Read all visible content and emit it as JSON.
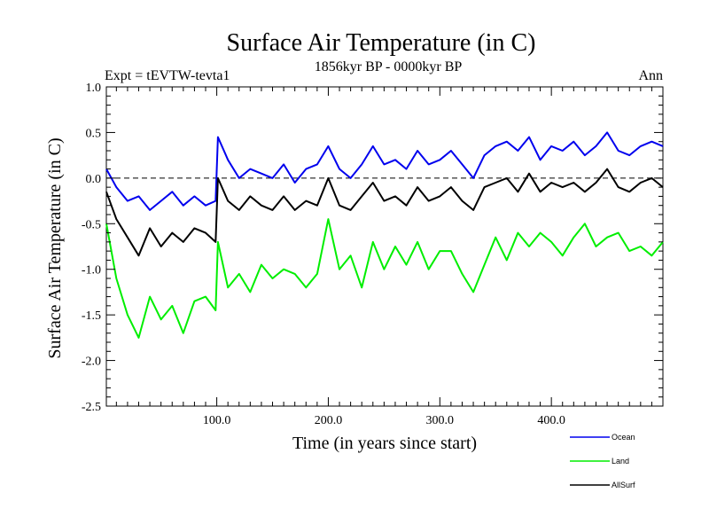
{
  "header": {
    "title": "Surface Air Temperature (in C)",
    "experiment": "Expt = tEVTW-tevta1",
    "period": "1856kyr BP - 0000kyr BP",
    "season": "Ann"
  },
  "chart_data": {
    "type": "line",
    "title": "Surface Air Temperature (in C)",
    "xlabel": "Time (in years since start)",
    "ylabel": "Surface Air Temperature (in C)",
    "xlim": [
      1,
      500
    ],
    "ylim": [
      -2.5,
      1.0
    ],
    "x_ticks": [
      100,
      200,
      300,
      400
    ],
    "x_tick_labels": [
      "100.0",
      "200.0",
      "300.0",
      "400.0"
    ],
    "y_ticks": [
      1.0,
      0.5,
      0.0,
      -0.5,
      -1.0,
      -1.5,
      -2.0,
      -2.5
    ],
    "y_tick_labels": [
      "1.0",
      "0.5",
      "0.0",
      "-0.5",
      "-1.0",
      "-1.5",
      "-2.0",
      "-2.5"
    ],
    "reference_line": 0.0,
    "legend_position": "bottom-right",
    "x": [
      1,
      10,
      20,
      30,
      40,
      50,
      60,
      70,
      80,
      90,
      99,
      101,
      110,
      120,
      130,
      140,
      150,
      160,
      170,
      180,
      190,
      200,
      210,
      220,
      230,
      240,
      250,
      260,
      270,
      280,
      290,
      300,
      310,
      320,
      330,
      340,
      350,
      360,
      370,
      380,
      390,
      400,
      410,
      420,
      430,
      440,
      450,
      460,
      470,
      480,
      490,
      500
    ],
    "series": [
      {
        "name": "Ocean",
        "color": "#0000ee",
        "values": [
          0.1,
          -0.1,
          -0.25,
          -0.2,
          -0.35,
          -0.25,
          -0.15,
          -0.3,
          -0.2,
          -0.3,
          -0.25,
          0.45,
          0.2,
          0.0,
          0.1,
          0.05,
          0.0,
          0.15,
          -0.05,
          0.1,
          0.15,
          0.35,
          0.1,
          0.0,
          0.15,
          0.35,
          0.15,
          0.2,
          0.1,
          0.3,
          0.15,
          0.2,
          0.3,
          0.15,
          0.0,
          0.25,
          0.35,
          0.4,
          0.3,
          0.45,
          0.2,
          0.35,
          0.3,
          0.4,
          0.25,
          0.35,
          0.5,
          0.3,
          0.25,
          0.35,
          0.4,
          0.35
        ]
      },
      {
        "name": "Land",
        "color": "#00ee00",
        "values": [
          -0.5,
          -1.1,
          -1.5,
          -1.75,
          -1.3,
          -1.55,
          -1.4,
          -1.7,
          -1.35,
          -1.3,
          -1.45,
          -0.7,
          -1.2,
          -1.05,
          -1.25,
          -0.95,
          -1.1,
          -1.0,
          -1.05,
          -1.2,
          -1.05,
          -0.45,
          -1.0,
          -0.85,
          -1.2,
          -0.7,
          -1.0,
          -0.75,
          -0.95,
          -0.7,
          -1.0,
          -0.8,
          -0.8,
          -1.05,
          -1.25,
          -0.95,
          -0.65,
          -0.9,
          -0.6,
          -0.75,
          -0.6,
          -0.7,
          -0.85,
          -0.65,
          -0.5,
          -0.75,
          -0.65,
          -0.6,
          -0.8,
          -0.75,
          -0.85,
          -0.7
        ]
      },
      {
        "name": "AllSurf",
        "color": "#000000",
        "values": [
          -0.15,
          -0.45,
          -0.65,
          -0.85,
          -0.55,
          -0.75,
          -0.6,
          -0.7,
          -0.55,
          -0.6,
          -0.7,
          0.0,
          -0.25,
          -0.35,
          -0.2,
          -0.3,
          -0.35,
          -0.2,
          -0.35,
          -0.25,
          -0.3,
          0.0,
          -0.3,
          -0.35,
          -0.2,
          -0.05,
          -0.25,
          -0.2,
          -0.3,
          -0.1,
          -0.25,
          -0.2,
          -0.1,
          -0.25,
          -0.35,
          -0.1,
          -0.05,
          0.0,
          -0.15,
          0.05,
          -0.15,
          -0.05,
          -0.1,
          -0.05,
          -0.15,
          -0.05,
          0.1,
          -0.1,
          -0.15,
          -0.05,
          0.0,
          -0.1
        ]
      }
    ]
  }
}
